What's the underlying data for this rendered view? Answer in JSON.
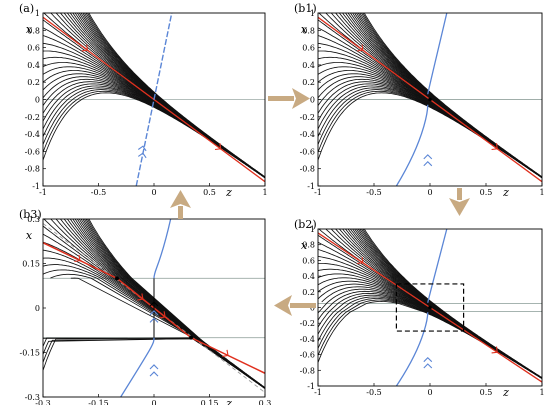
{
  "panels": [
    {
      "id": "a",
      "label": "(a)",
      "xlabel": "z",
      "ylabel": "x",
      "xticks": [
        "-1",
        "-0.5",
        "0",
        "0.5",
        "1"
      ],
      "yticks": [
        "1",
        "0.8",
        "0.6",
        "0.4",
        "0.2",
        "0",
        "-0.2",
        "-0.4",
        "-0.6",
        "-0.8",
        "-1"
      ],
      "xrange": [
        -1,
        1
      ],
      "yrange": [
        -1,
        1
      ]
    },
    {
      "id": "b1",
      "label": "(b1)",
      "xlabel": "z",
      "ylabel": "x",
      "xticks": [
        "-1",
        "-0.5",
        "0",
        "0.5",
        "1"
      ],
      "yticks": [
        "1",
        "0.8",
        "0.6",
        "0.4",
        "0.2",
        "0",
        "-0.2",
        "-0.4",
        "-0.6",
        "-0.8",
        "-1"
      ],
      "xrange": [
        -1,
        1
      ],
      "yrange": [
        -1,
        1
      ]
    },
    {
      "id": "b2",
      "label": "(b2)",
      "xlabel": "z",
      "ylabel": "x",
      "xticks": [
        "-1",
        "-0.5",
        "0",
        "0.5",
        "1"
      ],
      "yticks": [
        "1",
        "0.8",
        "0.6",
        "0.4",
        "0.2",
        "0",
        "-0.2",
        "-0.4",
        "-0.6",
        "-0.8",
        "-1"
      ],
      "xrange": [
        -1,
        1
      ],
      "yrange": [
        -1,
        1
      ]
    },
    {
      "id": "b3",
      "label": "(b3)",
      "xlabel": "z",
      "ylabel": "x",
      "xticks": [
        "-0.3",
        "-0.15",
        "0",
        "0.15",
        "0.3"
      ],
      "yticks": [
        "0.3",
        "0.15",
        "0",
        "-0.15",
        "-0.3"
      ],
      "xrange": [
        -0.3,
        0.3
      ],
      "yrange": [
        -0.3,
        0.3
      ]
    }
  ],
  "colors": {
    "trajectory": "#111111",
    "stable_manifold": "#5b86d6",
    "sliding": "#e0301e",
    "band": "#9aa9a4",
    "arrow": "#c8aa82",
    "dashed_guide": "#9a9a9a"
  }
}
